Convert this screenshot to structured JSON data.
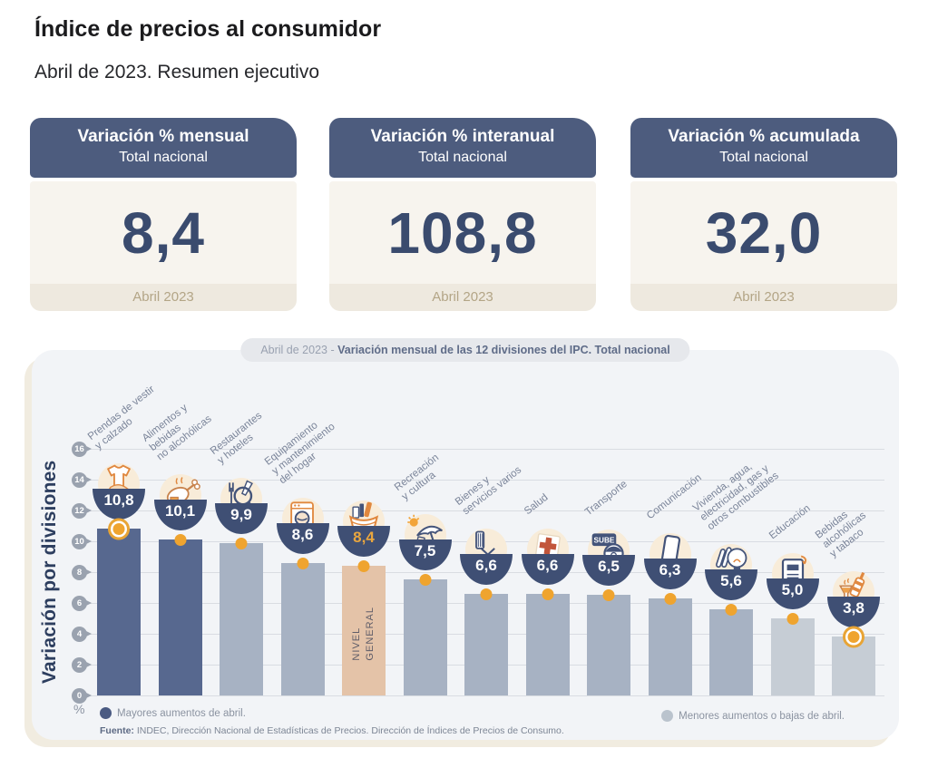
{
  "header": {
    "title": "Índice de precios al consumidor",
    "subtitle": "Abril de 2023. Resumen ejecutivo"
  },
  "kpi_cards": [
    {
      "title": "Variación % mensual",
      "scope": "Total nacional",
      "value": "8,4",
      "period": "Abril 2023"
    },
    {
      "title": "Variación % interanual",
      "scope": "Total nacional",
      "value": "108,8",
      "period": "Abril 2023"
    },
    {
      "title": "Variación % acumulada",
      "scope": "Total nacional",
      "value": "32,0",
      "period": "Abril 2023"
    }
  ],
  "chart": {
    "title_prefix": "Abril de 2023 - ",
    "title_main": "Variación mensual de las 12 divisiones del IPC. Total nacional",
    "axis_title": "Variación por divisiones",
    "unit_label": "%",
    "transport_card_label": "SUBE",
    "legend_left": "Mayores aumentos de abril.",
    "legend_right": "Menores aumentos o bajas de abril.",
    "source_label": "Fuente:",
    "source_text": " INDEC, Dirección Nacional de Estadísticas de Precios. Dirección de Índices de Precios de Consumo."
  },
  "colors": {
    "bar_dark": "#57688f",
    "bar_light": "#a7b2c3",
    "bar_lighter": "#c6cdd5",
    "bar_tan": "#e4c3a8",
    "bowl": "#3f4f74",
    "dot": "#efa42f",
    "gold_value": "#e9a63e",
    "card_header": "#4d5c7e",
    "card_body": "#f7f4ee",
    "panel": "#f2f4f7"
  },
  "chart_data": {
    "type": "bar",
    "title": "Abril de 2023 - Variación mensual de las 12 divisiones del IPC. Total nacional",
    "ylabel": "Variación por divisiones",
    "unit": "%",
    "ylim": [
      0,
      16
    ],
    "yticks": [
      16,
      14,
      12,
      10,
      8,
      6,
      4,
      2,
      0
    ],
    "legend": [
      {
        "label": "Mayores aumentos de abril.",
        "color": "#4a5a82"
      },
      {
        "label": "Menores aumentos o bajas de abril.",
        "color": "#bac3cd"
      }
    ],
    "divisions": [
      {
        "name": "Prendas de vestir y calzado",
        "label_lines": [
          "Prendas de vestir",
          "y calzado"
        ],
        "value": 10.8,
        "display": "10,8",
        "icon": "clothing-icon",
        "style": "dark",
        "marker": "ring"
      },
      {
        "name": "Alimentos y bebidas no alcohólicas",
        "label_lines": [
          "Alimentos y",
          "bebidas",
          "no alcohólicas"
        ],
        "value": 10.1,
        "display": "10,1",
        "icon": "food-icon",
        "style": "dark",
        "marker": "dot"
      },
      {
        "name": "Restaurantes y hoteles",
        "label_lines": [
          "Restaurantes",
          "y hoteles"
        ],
        "value": 9.9,
        "display": "9,9",
        "icon": "restaurant-icon",
        "style": "light",
        "marker": "dot"
      },
      {
        "name": "Equipamiento y mantenimiento del hogar",
        "label_lines": [
          "Equipamiento",
          "y mantenimiento",
          "del hogar"
        ],
        "value": 8.6,
        "display": "8,6",
        "icon": "household-icon",
        "style": "light",
        "marker": "dot"
      },
      {
        "name": "Nivel general",
        "label_lines": [],
        "bar_label_lines": [
          "NIVEL",
          "GENERAL"
        ],
        "value": 8.4,
        "display": "8,4",
        "icon": "basket-icon",
        "style": "tan",
        "marker": "dot",
        "value_gold": true
      },
      {
        "name": "Recreación y cultura",
        "label_lines": [
          "Recreación",
          "y cultura"
        ],
        "value": 7.5,
        "display": "7,5",
        "icon": "recreation-icon",
        "style": "light",
        "marker": "dot"
      },
      {
        "name": "Bienes y servicios varios",
        "label_lines": [
          "Bienes y",
          "servicios varios"
        ],
        "value": 6.6,
        "display": "6,6",
        "icon": "services-icon",
        "style": "light",
        "marker": "dot"
      },
      {
        "name": "Salud",
        "label_lines": [
          "Salud"
        ],
        "value": 6.6,
        "display": "6,6",
        "icon": "health-icon",
        "style": "light",
        "marker": "dot"
      },
      {
        "name": "Transporte",
        "label_lines": [
          "Transporte"
        ],
        "value": 6.5,
        "display": "6,5",
        "icon": "transport-icon",
        "style": "light",
        "marker": "dot"
      },
      {
        "name": "Comunicación",
        "label_lines": [
          "Comunicación"
        ],
        "value": 6.3,
        "display": "6,3",
        "icon": "communication-icon",
        "style": "light",
        "marker": "dot"
      },
      {
        "name": "Vivienda, agua, electricidad, gas y otros combustibles",
        "label_lines": [
          "Vivienda, agua,",
          "electricidad, gas y",
          "otros combustibles"
        ],
        "value": 5.6,
        "display": "5,6",
        "icon": "housing-icon",
        "style": "light",
        "marker": "dot"
      },
      {
        "name": "Educación",
        "label_lines": [
          "Educación"
        ],
        "value": 5.0,
        "display": "5,0",
        "icon": "education-icon",
        "style": "lighter",
        "marker": "dot"
      },
      {
        "name": "Bebidas alcohólicas y tabaco",
        "label_lines": [
          "Bebidas",
          "alcohólicas",
          "y tabaco"
        ],
        "value": 3.8,
        "display": "3,8",
        "icon": "drinks-icon",
        "style": "lighter",
        "marker": "ring"
      }
    ]
  }
}
